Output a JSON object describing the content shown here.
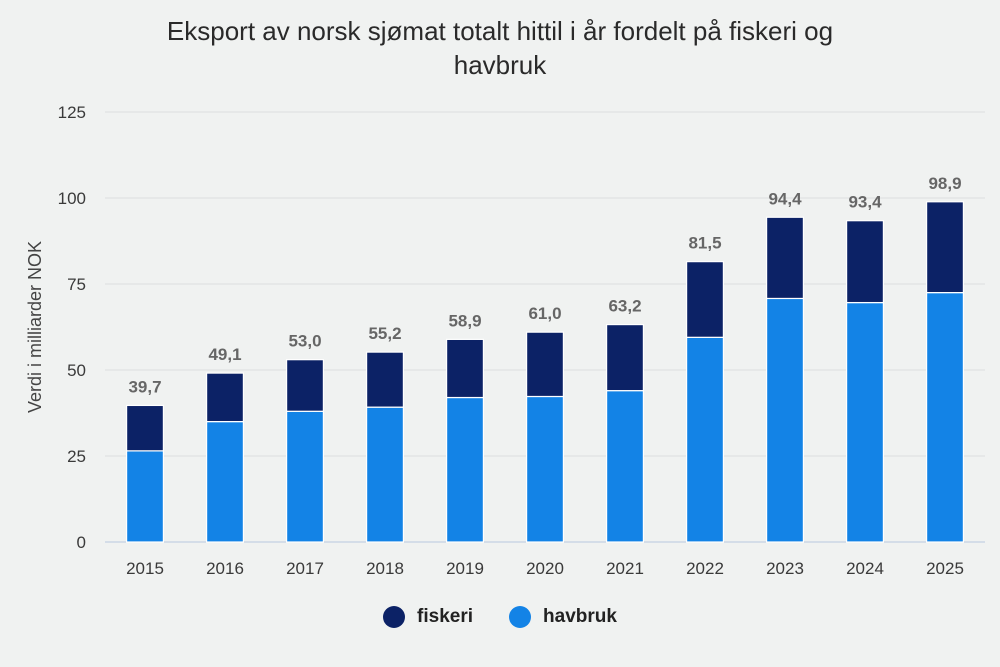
{
  "chart_data": {
    "type": "bar",
    "stacked": true,
    "title_line1": "Eksport av norsk sjømat totalt hittil i år fordelt på fiskeri og",
    "title_line2": "havbruk",
    "xlabel": "",
    "ylabel": "Verdi i milliarder NOK",
    "ylim": [
      0,
      125
    ],
    "yticks": [
      0,
      25,
      50,
      75,
      100,
      125
    ],
    "grid": true,
    "legend_position": "bottom-center",
    "categories": [
      "2015",
      "2016",
      "2017",
      "2018",
      "2019",
      "2020",
      "2021",
      "2022",
      "2023",
      "2024",
      "2025"
    ],
    "series": [
      {
        "name": "havbruk",
        "color": "#1383e6",
        "values": [
          26.5,
          35.0,
          38.0,
          39.2,
          42.0,
          42.3,
          44.0,
          59.5,
          70.8,
          69.6,
          72.5
        ]
      },
      {
        "name": "fiskeri",
        "color": "#0c2266",
        "values": [
          13.2,
          14.1,
          15.0,
          16.0,
          16.9,
          18.7,
          19.2,
          22.0,
          23.6,
          23.8,
          26.4
        ]
      }
    ],
    "totals": [
      "39,7",
      "49,1",
      "53,0",
      "55,2",
      "58,9",
      "61,0",
      "63,2",
      "81,5",
      "94,4",
      "93,4",
      "98,9"
    ]
  },
  "legend": {
    "items": [
      {
        "label": "fiskeri",
        "color": "#0c2266"
      },
      {
        "label": "havbruk",
        "color": "#1383e6"
      }
    ]
  }
}
